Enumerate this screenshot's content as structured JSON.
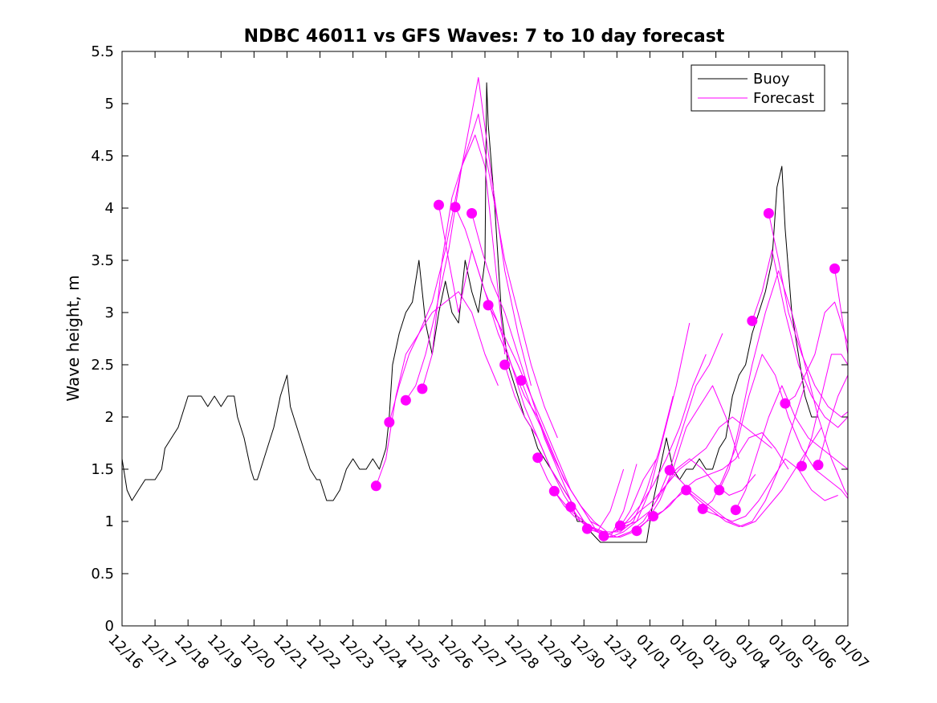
{
  "chart_data": {
    "type": "line",
    "title": "NDBC 46011 vs GFS Waves: 7 to 10 day forecast",
    "xlabel": "",
    "ylabel": "Wave height, m",
    "x_unit": "days since 12/16",
    "xlim": [
      0,
      22
    ],
    "ylim": [
      0,
      5.5
    ],
    "y_ticks": [
      0,
      0.5,
      1,
      1.5,
      2,
      2.5,
      3,
      3.5,
      4,
      4.5,
      5,
      5.5
    ],
    "y_tick_labels": [
      "0",
      "0.5",
      "1",
      "1.5",
      "2",
      "2.5",
      "3",
      "3.5",
      "4",
      "4.5",
      "5",
      "5.5"
    ],
    "x_ticks": [
      0,
      1,
      2,
      3,
      4,
      5,
      6,
      7,
      8,
      9,
      10,
      11,
      12,
      13,
      14,
      15,
      16,
      17,
      18,
      19,
      20,
      21,
      22
    ],
    "x_tick_labels": [
      "12/16",
      "12/17",
      "12/18",
      "12/19",
      "12/20",
      "12/21",
      "12/22",
      "12/23",
      "12/24",
      "12/25",
      "12/26",
      "12/27",
      "12/28",
      "12/29",
      "12/30",
      "12/31",
      "01/01",
      "01/02",
      "01/03",
      "01/04",
      "01/05",
      "01/06",
      "01/07"
    ],
    "legend": {
      "position": "top-right",
      "entries": [
        {
          "label": "Buoy",
          "color": "#000000"
        },
        {
          "label": "Forecast",
          "color": "#ff00ff"
        }
      ]
    },
    "series": [
      {
        "name": "Buoy",
        "color": "#000000",
        "x": [
          0,
          0.15,
          0.3,
          0.5,
          0.7,
          0.9,
          1.0,
          1.2,
          1.3,
          1.5,
          1.7,
          1.9,
          2.0,
          2.2,
          2.4,
          2.6,
          2.8,
          3.0,
          3.2,
          3.4,
          3.5,
          3.7,
          3.9,
          4.0,
          4.1,
          4.2,
          4.4,
          4.6,
          4.8,
          5.0,
          5.1,
          5.3,
          5.5,
          5.7,
          5.9,
          6.0,
          6.2,
          6.4,
          6.6,
          6.8,
          7.0,
          7.2,
          7.4,
          7.6,
          7.8,
          8.0,
          8.1,
          8.2,
          8.4,
          8.6,
          8.8,
          9.0,
          9.2,
          9.4,
          9.6,
          9.8,
          10.0,
          10.2,
          10.4,
          10.6,
          10.8,
          11.0,
          11.05,
          11.1,
          11.3,
          11.5,
          11.7,
          12.0,
          12.2,
          12.4,
          12.6,
          12.8,
          13.0,
          13.2,
          13.4,
          13.6,
          13.8,
          14.0,
          14.2,
          14.5,
          14.8,
          15.0,
          15.3,
          15.6,
          15.9,
          16.1,
          16.3,
          16.5,
          16.7,
          16.9,
          17.1,
          17.3,
          17.5,
          17.7,
          17.9,
          18.1,
          18.3,
          18.5,
          18.7,
          18.9,
          19.1,
          19.3,
          19.5,
          19.7,
          19.85,
          20.0,
          20.1,
          20.3,
          20.5,
          20.7,
          20.9,
          21.1
        ],
        "values": [
          1.6,
          1.3,
          1.2,
          1.3,
          1.4,
          1.4,
          1.4,
          1.5,
          1.7,
          1.8,
          1.9,
          2.1,
          2.2,
          2.2,
          2.2,
          2.1,
          2.2,
          2.1,
          2.2,
          2.2,
          2.0,
          1.8,
          1.5,
          1.4,
          1.4,
          1.5,
          1.7,
          1.9,
          2.2,
          2.4,
          2.1,
          1.9,
          1.7,
          1.5,
          1.4,
          1.4,
          1.2,
          1.2,
          1.3,
          1.5,
          1.6,
          1.5,
          1.5,
          1.6,
          1.5,
          1.7,
          2.0,
          2.5,
          2.8,
          3.0,
          3.1,
          3.5,
          2.9,
          2.6,
          3.0,
          3.3,
          3.0,
          2.9,
          3.5,
          3.2,
          3.0,
          3.5,
          5.2,
          4.8,
          4.0,
          3.0,
          2.5,
          2.2,
          2.0,
          1.9,
          1.7,
          1.6,
          1.5,
          1.4,
          1.3,
          1.2,
          1.0,
          1.0,
          0.9,
          0.8,
          0.8,
          0.8,
          0.8,
          0.8,
          0.8,
          1.2,
          1.5,
          1.8,
          1.5,
          1.4,
          1.5,
          1.5,
          1.6,
          1.5,
          1.5,
          1.7,
          1.8,
          2.2,
          2.4,
          2.5,
          2.8,
          3.0,
          3.2,
          3.5,
          4.2,
          4.4,
          3.8,
          3.0,
          2.6,
          2.2,
          2.0,
          2.0
        ]
      },
      {
        "name": "Forecast",
        "color": "#ff00ff",
        "x": [
          7.7,
          8.0,
          8.3,
          8.6,
          9.0,
          9.4,
          9.8,
          10.2,
          10.6,
          11.0,
          11.4
        ],
        "values": [
          1.34,
          1.6,
          2.2,
          2.6,
          2.8,
          3.0,
          3.1,
          3.2,
          3.0,
          2.6,
          2.3
        ]
      },
      {
        "name": "Forecast",
        "color": "#ff00ff",
        "x": [
          8.1,
          8.4,
          8.7,
          9.0,
          9.4,
          9.8,
          10.3,
          10.7,
          11.0,
          11.3,
          11.6
        ],
        "values": [
          1.95,
          2.3,
          2.6,
          2.8,
          3.1,
          3.6,
          4.4,
          4.7,
          4.4,
          3.5,
          2.6
        ]
      },
      {
        "name": "Forecast",
        "color": "#ff00ff",
        "x": [
          8.6,
          8.9,
          9.2,
          9.5,
          9.9,
          10.3,
          10.8,
          11.2,
          11.6,
          12.0,
          12.4
        ],
        "values": [
          2.16,
          2.3,
          2.6,
          3.0,
          3.6,
          4.4,
          5.25,
          4.3,
          3.4,
          2.8,
          2.3
        ]
      },
      {
        "name": "Forecast",
        "color": "#ff00ff",
        "x": [
          9.1,
          9.4,
          9.7,
          10.0,
          10.4,
          10.8,
          11.2,
          11.6,
          12.0,
          12.4,
          12.8,
          13.2
        ],
        "values": [
          2.27,
          2.6,
          3.5,
          4.1,
          4.5,
          4.9,
          4.2,
          3.5,
          3.0,
          2.5,
          2.1,
          1.8
        ]
      },
      {
        "name": "Forecast",
        "color": "#ff00ff",
        "x": [
          9.6,
          9.9,
          10.2,
          10.6,
          11.0,
          11.4,
          11.8,
          12.2,
          12.6,
          13.0,
          13.4,
          13.8,
          14.2
        ],
        "values": [
          4.03,
          3.5,
          3.0,
          3.6,
          3.2,
          2.9,
          2.5,
          2.1,
          1.8,
          1.5,
          1.3,
          1.1,
          0.9
        ]
      },
      {
        "name": "Forecast",
        "color": "#ff00ff",
        "x": [
          10.1,
          10.4,
          10.7,
          11.0,
          11.4,
          11.8,
          12.2,
          12.6,
          13.0,
          13.4,
          13.8,
          14.2,
          14.5
        ],
        "values": [
          4.01,
          3.8,
          3.5,
          3.2,
          2.8,
          2.5,
          2.2,
          2.0,
          1.7,
          1.4,
          1.2,
          1.0,
          0.95
        ]
      },
      {
        "name": "Forecast",
        "color": "#ff00ff",
        "x": [
          10.6,
          10.9,
          11.2,
          11.6,
          12.0,
          12.4,
          12.8,
          13.2,
          13.6,
          14.0,
          14.4,
          14.8,
          15.2
        ],
        "values": [
          3.95,
          3.6,
          3.3,
          3.0,
          2.6,
          2.2,
          1.8,
          1.5,
          1.2,
          1.0,
          0.9,
          1.1,
          1.5
        ]
      },
      {
        "name": "Forecast",
        "color": "#ff00ff",
        "x": [
          11.1,
          11.4,
          11.7,
          12.0,
          12.4,
          12.8,
          13.2,
          13.6,
          14.0,
          14.4,
          14.8,
          15.2,
          15.6
        ],
        "values": [
          3.07,
          2.9,
          2.7,
          2.5,
          2.2,
          1.9,
          1.6,
          1.3,
          1.1,
          0.9,
          0.85,
          1.1,
          1.55
        ]
      },
      {
        "name": "Forecast",
        "color": "#ff00ff",
        "x": [
          11.6,
          11.9,
          12.2,
          12.6,
          13.0,
          13.4,
          13.8,
          14.2,
          14.6,
          15.0,
          15.4,
          15.8,
          16.2
        ],
        "values": [
          2.5,
          2.2,
          2.0,
          1.8,
          1.5,
          1.25,
          1.05,
          0.95,
          0.9,
          0.9,
          1.1,
          1.4,
          1.6
        ]
      },
      {
        "name": "Forecast",
        "color": "#ff00ff",
        "x": [
          12.1,
          12.4,
          12.7,
          13.1,
          13.5,
          13.9,
          14.3,
          14.7,
          15.1,
          15.5,
          15.9,
          16.3,
          16.7
        ],
        "values": [
          2.35,
          2.1,
          1.9,
          1.6,
          1.35,
          1.15,
          1.0,
          0.9,
          0.9,
          1.0,
          1.3,
          1.7,
          2.2
        ]
      },
      {
        "name": "Forecast",
        "color": "#ff00ff",
        "x": [
          12.6,
          12.9,
          13.2,
          13.6,
          14.0,
          14.4,
          14.8,
          15.2,
          15.6,
          16.0,
          16.4,
          16.8,
          17.2
        ],
        "values": [
          1.61,
          1.4,
          1.25,
          1.1,
          1.0,
          0.9,
          0.85,
          0.9,
          1.0,
          1.3,
          1.8,
          2.3,
          2.9
        ]
      },
      {
        "name": "Forecast",
        "color": "#ff00ff",
        "x": [
          13.1,
          13.4,
          13.7,
          14.1,
          14.5,
          14.9,
          15.3,
          15.7,
          16.1,
          16.5,
          16.9,
          17.3,
          17.7
        ],
        "values": [
          1.29,
          1.15,
          1.05,
          0.95,
          0.9,
          0.9,
          1.0,
          1.15,
          1.35,
          1.6,
          1.9,
          2.3,
          2.6
        ]
      },
      {
        "name": "Forecast",
        "color": "#ff00ff",
        "x": [
          13.6,
          13.9,
          14.2,
          14.6,
          15.0,
          15.4,
          15.8,
          16.2,
          16.6,
          17.0,
          17.4,
          17.8,
          18.2
        ],
        "values": [
          1.14,
          1.0,
          0.95,
          0.9,
          0.85,
          0.9,
          1.0,
          1.2,
          1.5,
          1.9,
          2.3,
          2.5,
          2.8
        ]
      },
      {
        "name": "Forecast",
        "color": "#ff00ff",
        "x": [
          14.1,
          14.4,
          14.7,
          15.1,
          15.5,
          15.9,
          16.3,
          16.7,
          17.1,
          17.5,
          17.9,
          18.3,
          18.7
        ],
        "values": [
          0.93,
          0.9,
          0.85,
          0.85,
          0.9,
          1.0,
          1.2,
          1.5,
          1.9,
          2.1,
          2.3,
          2.0,
          1.6
        ]
      },
      {
        "name": "Forecast",
        "color": "#ff00ff",
        "x": [
          14.6,
          14.9,
          15.2,
          15.6,
          16.0,
          16.4,
          16.8,
          17.2,
          17.6,
          18.0,
          18.4,
          18.8,
          19.2
        ],
        "values": [
          0.86,
          0.9,
          0.95,
          1.0,
          1.1,
          1.3,
          1.5,
          1.6,
          1.5,
          1.35,
          1.25,
          1.3,
          1.45
        ]
      },
      {
        "name": "Forecast",
        "color": "#ff00ff",
        "x": [
          15.1,
          15.4,
          15.7,
          16.1,
          16.5,
          16.9,
          17.3,
          17.7,
          18.1,
          18.5,
          18.9,
          19.3,
          19.7
        ],
        "values": [
          0.96,
          1.0,
          1.1,
          1.2,
          1.35,
          1.5,
          1.6,
          1.7,
          1.9,
          2.0,
          1.9,
          1.8,
          1.7
        ]
      },
      {
        "name": "Forecast",
        "color": "#ff00ff",
        "x": [
          15.6,
          15.9,
          16.2,
          16.6,
          17.0,
          17.4,
          17.8,
          18.2,
          18.6,
          19.0,
          19.4,
          19.8,
          20.2
        ],
        "values": [
          0.91,
          1.0,
          1.05,
          1.15,
          1.3,
          1.4,
          1.45,
          1.5,
          1.6,
          1.8,
          1.85,
          1.7,
          1.5
        ]
      },
      {
        "name": "Forecast",
        "color": "#ff00ff",
        "x": [
          16.1,
          16.4,
          16.7,
          17.1,
          17.5,
          17.9,
          18.3,
          18.7,
          19.1,
          19.5,
          19.9,
          20.3,
          20.7
        ],
        "values": [
          1.05,
          1.1,
          1.2,
          1.3,
          1.2,
          1.1,
          1.0,
          0.95,
          1.0,
          1.2,
          1.5,
          1.9,
          2.3
        ]
      },
      {
        "name": "Forecast",
        "color": "#ff00ff",
        "x": [
          16.6,
          16.9,
          17.2,
          17.6,
          18.0,
          18.4,
          18.8,
          19.2,
          19.6,
          20.0,
          20.4,
          20.8,
          21.2
        ],
        "values": [
          1.49,
          1.4,
          1.3,
          1.2,
          1.1,
          1.0,
          0.95,
          1.0,
          1.15,
          1.3,
          1.5,
          1.7,
          1.9
        ]
      },
      {
        "name": "Forecast",
        "color": "#ff00ff",
        "x": [
          17.1,
          17.4,
          17.7,
          18.1,
          18.5,
          18.9,
          19.3,
          19.7,
          20.1,
          20.5,
          20.9,
          21.3,
          21.7
        ],
        "values": [
          1.3,
          1.2,
          1.1,
          1.05,
          1.0,
          1.05,
          1.2,
          1.4,
          1.6,
          1.5,
          1.3,
          1.2,
          1.25
        ]
      },
      {
        "name": "Forecast",
        "color": "#ff00ff",
        "x": [
          17.6,
          17.9,
          18.2,
          18.6,
          19.0,
          19.4,
          19.8,
          20.2,
          20.6,
          21.0,
          21.4,
          21.8,
          22.0
        ],
        "values": [
          1.12,
          1.2,
          1.4,
          1.7,
          2.2,
          2.6,
          2.4,
          2.0,
          1.7,
          1.5,
          1.4,
          1.3,
          1.22
        ]
      },
      {
        "name": "Forecast",
        "color": "#ff00ff",
        "x": [
          18.1,
          18.4,
          18.7,
          19.1,
          19.5,
          19.9,
          20.3,
          20.7,
          21.1,
          21.5,
          21.9,
          22.0
        ],
        "values": [
          1.3,
          1.5,
          1.9,
          2.5,
          3.0,
          3.4,
          3.0,
          2.5,
          2.0,
          1.6,
          1.3,
          1.25
        ]
      },
      {
        "name": "Forecast",
        "color": "#ff00ff",
        "x": [
          18.6,
          18.9,
          19.2,
          19.6,
          20.0,
          20.4,
          20.8,
          21.2,
          21.6,
          22.0
        ],
        "values": [
          1.11,
          1.3,
          1.6,
          2.0,
          2.3,
          2.0,
          1.8,
          1.7,
          1.6,
          1.5
        ]
      },
      {
        "name": "Forecast",
        "color": "#ff00ff",
        "x": [
          19.1,
          19.4,
          19.7,
          20.1,
          20.5,
          20.9,
          21.3,
          21.7,
          22.0
        ],
        "values": [
          2.92,
          3.2,
          3.6,
          3.0,
          2.5,
          2.2,
          2.0,
          1.9,
          2.0
        ]
      },
      {
        "name": "Forecast",
        "color": "#ff00ff",
        "x": [
          19.6,
          19.9,
          20.2,
          20.6,
          21.0,
          21.4,
          21.8,
          22.0
        ],
        "values": [
          3.95,
          3.5,
          3.0,
          2.6,
          2.3,
          2.1,
          2.0,
          2.05
        ]
      },
      {
        "name": "Forecast",
        "color": "#ff00ff",
        "x": [
          20.1,
          20.4,
          20.7,
          21.0,
          21.3,
          21.6,
          22.0
        ],
        "values": [
          2.13,
          2.2,
          2.4,
          2.6,
          3.0,
          3.1,
          2.7
        ]
      },
      {
        "name": "Forecast",
        "color": "#ff00ff",
        "x": [
          20.6,
          20.9,
          21.2,
          21.5,
          21.8,
          22.0
        ],
        "values": [
          1.53,
          1.8,
          2.2,
          2.6,
          2.6,
          2.5
        ]
      },
      {
        "name": "Forecast",
        "color": "#ff00ff",
        "x": [
          21.1,
          21.4,
          21.7,
          22.0
        ],
        "values": [
          1.54,
          1.9,
          2.2,
          2.4
        ]
      },
      {
        "name": "Forecast",
        "color": "#ff00ff",
        "x": [
          21.6,
          21.8,
          22.0
        ],
        "values": [
          3.42,
          3.0,
          2.6
        ]
      }
    ],
    "forecast_markers": {
      "color": "#ff00ff",
      "x": [
        7.7,
        8.1,
        8.6,
        9.1,
        9.6,
        10.1,
        10.6,
        11.1,
        11.6,
        12.1,
        12.6,
        13.1,
        13.6,
        14.1,
        14.6,
        15.1,
        15.6,
        16.1,
        16.6,
        17.1,
        17.6,
        18.1,
        18.6,
        19.1,
        19.6,
        20.1,
        20.6,
        21.1,
        21.6
      ],
      "values": [
        1.34,
        1.95,
        2.16,
        2.27,
        4.03,
        4.01,
        3.95,
        3.07,
        2.5,
        2.35,
        1.61,
        1.29,
        1.14,
        0.93,
        0.86,
        0.96,
        0.91,
        1.05,
        1.49,
        1.3,
        1.12,
        1.3,
        1.11,
        2.92,
        3.95,
        2.13,
        1.53,
        1.54,
        3.42
      ]
    }
  }
}
